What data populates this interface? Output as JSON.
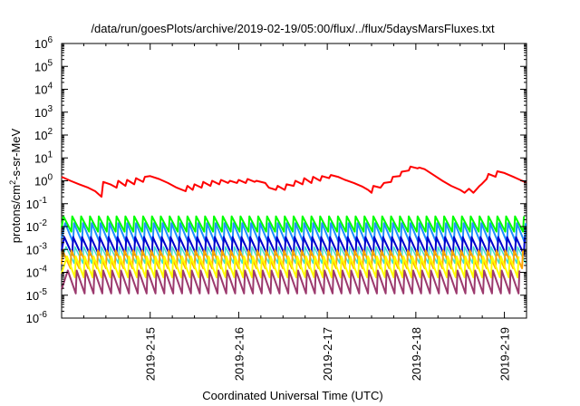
{
  "chart_data": {
    "type": "line",
    "title": "/data/run/goesPlots/archive/2019-02-19/05:00/flux/../flux/5daysMarsFluxes.txt",
    "xlabel": "Coordinated Universal Time (UTC)",
    "ylabel_prefix": "protons/cm",
    "ylabel_sup": "2",
    "ylabel_suffix": "-s-sr-MeV",
    "yscale": "log",
    "ylim_exp": [
      -6,
      6
    ],
    "ytick_exponents": [
      -6,
      -5,
      -4,
      -3,
      -2,
      -1,
      0,
      1,
      2,
      3,
      4,
      5,
      6
    ],
    "ytick_base": "10",
    "xlim_days": [
      14.0,
      19.25
    ],
    "xticks": [
      {
        "day": 15,
        "label": "2019-2-15"
      },
      {
        "day": 16,
        "label": "2019-2-16"
      },
      {
        "day": 17,
        "label": "2019-2-17"
      },
      {
        "day": 18,
        "label": "2019-2-18"
      },
      {
        "day": 19,
        "label": "2019-2-19"
      }
    ],
    "grid": false,
    "series": [
      {
        "color": "#ff0000",
        "width": 2,
        "points": [
          [
            14.0,
            1.5
          ],
          [
            14.1,
            1.0
          ],
          [
            14.2,
            0.7
          ],
          [
            14.3,
            0.5
          ],
          [
            14.38,
            0.35
          ],
          [
            14.45,
            0.2
          ],
          [
            14.47,
            0.9
          ],
          [
            14.55,
            0.7
          ],
          [
            14.62,
            0.5
          ],
          [
            14.64,
            1.0
          ],
          [
            14.72,
            0.6
          ],
          [
            14.74,
            1.1
          ],
          [
            14.82,
            0.7
          ],
          [
            14.84,
            1.3
          ],
          [
            14.92,
            0.9
          ],
          [
            14.94,
            1.5
          ],
          [
            15.0,
            1.6
          ],
          [
            15.1,
            1.2
          ],
          [
            15.2,
            0.8
          ],
          [
            15.3,
            0.5
          ],
          [
            15.4,
            0.35
          ],
          [
            15.42,
            0.6
          ],
          [
            15.48,
            0.4
          ],
          [
            15.5,
            0.7
          ],
          [
            15.58,
            0.5
          ],
          [
            15.6,
            0.9
          ],
          [
            15.68,
            0.6
          ],
          [
            15.7,
            1.0
          ],
          [
            15.78,
            0.7
          ],
          [
            15.8,
            1.1
          ],
          [
            15.88,
            0.8
          ],
          [
            15.9,
            1.0
          ],
          [
            15.98,
            0.8
          ],
          [
            16.0,
            1.1
          ],
          [
            16.08,
            0.8
          ],
          [
            16.1,
            1.2
          ],
          [
            16.18,
            0.9
          ],
          [
            16.2,
            1.0
          ],
          [
            16.3,
            0.8
          ],
          [
            16.34,
            0.5
          ],
          [
            16.42,
            0.4
          ],
          [
            16.44,
            0.6
          ],
          [
            16.52,
            0.4
          ],
          [
            16.54,
            0.7
          ],
          [
            16.62,
            0.6
          ],
          [
            16.64,
            1.0
          ],
          [
            16.72,
            0.7
          ],
          [
            16.74,
            1.3
          ],
          [
            16.82,
            0.8
          ],
          [
            16.84,
            1.5
          ],
          [
            16.92,
            1.0
          ],
          [
            16.94,
            1.6
          ],
          [
            17.02,
            1.3
          ],
          [
            17.04,
            1.8
          ],
          [
            17.12,
            1.5
          ],
          [
            17.2,
            1.1
          ],
          [
            17.3,
            0.8
          ],
          [
            17.4,
            0.55
          ],
          [
            17.46,
            0.4
          ],
          [
            17.5,
            0.3
          ],
          [
            17.52,
            0.6
          ],
          [
            17.6,
            0.5
          ],
          [
            17.64,
            0.8
          ],
          [
            17.72,
            0.9
          ],
          [
            17.74,
            1.5
          ],
          [
            17.82,
            1.6
          ],
          [
            17.84,
            2.5
          ],
          [
            17.92,
            2.8
          ],
          [
            17.94,
            4.2
          ],
          [
            18.02,
            3.5
          ],
          [
            18.04,
            3.8
          ],
          [
            18.1,
            3.2
          ],
          [
            18.2,
            1.8
          ],
          [
            18.3,
            1.0
          ],
          [
            18.4,
            0.6
          ],
          [
            18.5,
            0.4
          ],
          [
            18.55,
            0.3
          ],
          [
            18.6,
            0.45
          ],
          [
            18.65,
            0.3
          ],
          [
            18.72,
            0.6
          ],
          [
            18.74,
            0.7
          ],
          [
            18.8,
            1.2
          ],
          [
            18.82,
            2.0
          ],
          [
            18.9,
            1.5
          ],
          [
            18.92,
            2.6
          ],
          [
            19.0,
            2.2
          ],
          [
            19.1,
            1.5
          ],
          [
            19.2,
            1.0
          ],
          [
            19.25,
            0.85
          ]
        ]
      },
      {
        "color": "#00ff00",
        "width": 2,
        "sawtooth": {
          "start": 14.02,
          "period": 0.1,
          "high": 0.028,
          "low": 0.006,
          "drift": 1.0
        }
      },
      {
        "color": "#1e90ff",
        "width": 2,
        "sawtooth": {
          "start": 14.04,
          "period": 0.1,
          "high": 0.014,
          "low": 0.002,
          "drift": 1.0
        }
      },
      {
        "color": "#0000cd",
        "width": 2,
        "sawtooth": {
          "start": 14.03,
          "period": 0.1,
          "high": 0.0035,
          "low": 0.0006,
          "drift": 1.0
        }
      },
      {
        "color": "#40e0d0",
        "width": 1.5,
        "sawtooth": {
          "start": 14.05,
          "period": 0.1,
          "high": 0.0013,
          "low": 0.00025,
          "drift": 1.0
        }
      },
      {
        "color": "#ffa500",
        "width": 2,
        "sawtooth": {
          "start": 14.01,
          "period": 0.1,
          "high": 0.0009,
          "low": 0.00015,
          "drift": 1.0
        }
      },
      {
        "color": "#ffff00",
        "width": 2,
        "sawtooth": {
          "start": 14.06,
          "period": 0.1,
          "high": 0.0005,
          "low": 6e-05,
          "drift": 1.0
        }
      },
      {
        "color": "#9c3a6e",
        "width": 2,
        "sawtooth": {
          "start": 14.07,
          "period": 0.1,
          "high": 0.00012,
          "low": 1.2e-05,
          "drift": 1.0
        }
      }
    ]
  }
}
